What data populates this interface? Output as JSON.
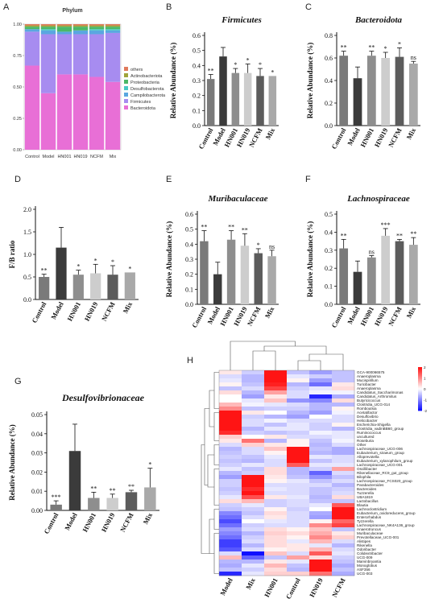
{
  "panel_letters": [
    "A",
    "B",
    "C",
    "D",
    "E",
    "F",
    "G",
    "H"
  ],
  "chart_data": [
    {
      "id": "A",
      "type": "bar",
      "stacked": true,
      "title": "Phylum",
      "categories": [
        "Control",
        "Model",
        "HN001",
        "HN019",
        "NCFM",
        "Mix"
      ],
      "ylim": [
        0,
        1
      ],
      "yticks": [
        "0.00",
        "0.25",
        "0.50",
        "0.75",
        "1.00"
      ],
      "legend_position": "right",
      "series": [
        {
          "name": "Bacteroidota",
          "color": "#e86fd6",
          "values": [
            0.67,
            0.45,
            0.6,
            0.6,
            0.58,
            0.54
          ]
        },
        {
          "name": "Firmicutes",
          "color": "#a78cf0",
          "values": [
            0.27,
            0.47,
            0.32,
            0.32,
            0.34,
            0.39
          ]
        },
        {
          "name": "Campilobacterota",
          "color": "#5aa7e0",
          "values": [
            0.02,
            0.03,
            0.02,
            0.03,
            0.03,
            0.02
          ]
        },
        {
          "name": "Desulfobacterota",
          "color": "#47c9c4",
          "values": [
            0.0,
            0.01,
            0.0,
            0.0,
            0.01,
            0.01
          ]
        },
        {
          "name": "Proteobacteria",
          "color": "#4bb868",
          "values": [
            0.02,
            0.02,
            0.04,
            0.03,
            0.02,
            0.02
          ]
        },
        {
          "name": "Actinobacteriota",
          "color": "#a0a43a",
          "values": [
            0.01,
            0.01,
            0.01,
            0.01,
            0.01,
            0.01
          ]
        },
        {
          "name": "others",
          "color": "#e07a5c",
          "values": [
            0.01,
            0.01,
            0.01,
            0.01,
            0.01,
            0.01
          ]
        }
      ],
      "legend_order": [
        "others",
        "Actinobacteriota",
        "Proteobacteria",
        "Desulfobacterota",
        "Campilobacterota",
        "Firmicutes",
        "Bacteroidota"
      ]
    },
    {
      "id": "B",
      "type": "bar",
      "title": "Firmicutes",
      "ylabel": "Relative Abundance (%)",
      "categories": [
        "Control",
        "Model",
        "HN001",
        "HN019",
        "NCFM",
        "Mix"
      ],
      "values": [
        0.31,
        0.46,
        0.35,
        0.35,
        0.33,
        0.33
      ],
      "errors": [
        0.03,
        0.06,
        0.03,
        0.06,
        0.05,
        0.0
      ],
      "sig": [
        "**",
        "",
        "*",
        "*",
        "*",
        "*"
      ],
      "ylim": [
        0,
        0.6
      ],
      "yticks": [
        "0.0",
        "0.1",
        "0.2",
        "0.3",
        "0.4",
        "0.5",
        "0.6"
      ]
    },
    {
      "id": "C",
      "type": "bar",
      "title": "Bacteroidota",
      "ylabel": "Relative Abundance (%)",
      "categories": [
        "Control",
        "Model",
        "HN001",
        "HN019",
        "NCFM",
        "Mix"
      ],
      "values": [
        0.62,
        0.42,
        0.62,
        0.6,
        0.61,
        0.55
      ],
      "errors": [
        0.04,
        0.1,
        0.04,
        0.05,
        0.08,
        0.02
      ],
      "sig": [
        "**",
        "",
        "**",
        "*",
        "*",
        "ns"
      ],
      "ylim": [
        0,
        0.8
      ],
      "yticks": [
        "0.0",
        "0.2",
        "0.4",
        "0.6",
        "0.8"
      ]
    },
    {
      "id": "D",
      "type": "bar",
      "title": "",
      "ylabel": "F/B ratio",
      "categories": [
        "Control",
        "Model",
        "HN001",
        "HN019",
        "NCFM",
        "Mix"
      ],
      "values": [
        0.5,
        1.15,
        0.55,
        0.58,
        0.55,
        0.6
      ],
      "errors": [
        0.06,
        0.45,
        0.1,
        0.2,
        0.2,
        0.0
      ],
      "sig": [
        "**",
        "",
        "*",
        "*",
        "*",
        "*"
      ],
      "ylim": [
        0,
        2.0
      ],
      "yticks": [
        "0.0",
        "0.5",
        "1.0",
        "1.5",
        "2.0"
      ]
    },
    {
      "id": "E",
      "type": "bar",
      "title": "Muribaculaceae",
      "ylabel": "Relative Abundance (%)",
      "categories": [
        "Control",
        "Model",
        "HN001",
        "HN019",
        "NCFM",
        "Mix"
      ],
      "values": [
        0.42,
        0.2,
        0.43,
        0.39,
        0.34,
        0.32
      ],
      "errors": [
        0.07,
        0.08,
        0.06,
        0.08,
        0.03,
        0.04
      ],
      "sig": [
        "**",
        "",
        "**",
        "**",
        "*",
        "ns"
      ],
      "ylim": [
        0,
        0.6
      ],
      "yticks": [
        "0.0",
        "0.1",
        "0.2",
        "0.3",
        "0.4",
        "0.5",
        "0.6"
      ]
    },
    {
      "id": "F",
      "type": "bar",
      "title": "Lachnospiraceae",
      "ylabel": "Relative Abundance (%)",
      "categories": [
        "Control",
        "Model",
        "HN001",
        "HN019",
        "NCFM",
        "Mix"
      ],
      "values": [
        0.31,
        0.18,
        0.26,
        0.38,
        0.35,
        0.33
      ],
      "errors": [
        0.05,
        0.06,
        0.01,
        0.04,
        0.01,
        0.04
      ],
      "sig": [
        "**",
        "",
        "ns",
        "***",
        "**",
        "**"
      ],
      "ylim": [
        0,
        0.5
      ],
      "yticks": [
        "0.0",
        "0.1",
        "0.2",
        "0.3",
        "0.4",
        "0.5"
      ]
    },
    {
      "id": "G",
      "type": "bar",
      "title": "Desulfovibrionaceae",
      "ylabel": "Relative Abundance (%)",
      "categories": [
        "Control",
        "Model",
        "HN001",
        "HN019",
        "NCFM",
        "Mix"
      ],
      "values": [
        0.003,
        0.031,
        0.0065,
        0.0065,
        0.0095,
        0.012
      ],
      "errors": [
        0.002,
        0.014,
        0.003,
        0.002,
        0.001,
        0.01
      ],
      "sig": [
        "***",
        "",
        "**",
        "**",
        "**",
        "*"
      ],
      "ylim": [
        0,
        0.05
      ],
      "yticks": [
        "0.00",
        "0.01",
        "0.02",
        "0.03",
        "0.04",
        "0.05"
      ]
    },
    {
      "id": "H",
      "type": "heatmap",
      "columns": [
        "Model",
        "Mix",
        "HN001",
        "Control",
        "HN019",
        "NCFM"
      ],
      "rows": [
        "GCA-900066575",
        "Anaeroplasma",
        "Mucispirillum",
        "Turicibacter",
        "Anaeroplasma",
        "Candidatus_Saccharimonas",
        "Candidatus_Arthromitus",
        "Butyricicoccus",
        "Clostridia_UCG-014",
        "Romboutsia",
        "Acetatifactor",
        "Desulfovibrio",
        "Helicobacter",
        "Escherichia-Shigella",
        "Clostridia_vadinBB60_group",
        "Ruminococcus",
        "uncultured",
        "Roseburia",
        "Other",
        "Lachnospiraceae_UCG-006",
        "Eubacterium_siraeum_group",
        "Alloprevotella",
        "Eubacterium_xylanophilum_group",
        "Lachnospiraceae_UCG-001",
        "Oscillibacter",
        "Rikenellaceae_RC9_gut_group",
        "Bilophila",
        "Lachnospiraceae_FCS020_group",
        "Parabacteroides",
        "Bacteroides",
        "Tuzzerella",
        "UBA1819",
        "Lactobacillus",
        "Blautia",
        "Lachnoclostridium",
        "Eubacterium_oxidoreducens_group",
        "Enterorhabdus",
        "Tyzzerella",
        "Lachnospiraceae_NK4A136_group",
        "Anaerotruncus",
        "Muribaculaceae",
        "Prevotellaceae_UCG-001",
        "Alistipes",
        "Rikenella",
        "Odoribacter",
        "Colidextribacter",
        "UCG-009",
        "Marvinbryantia",
        "Monoglobus",
        "ASF356",
        "UCG-003"
      ],
      "values": [
        [
          0.2,
          -0.4,
          2.0,
          -0.5,
          -0.8,
          -0.5
        ],
        [
          -0.3,
          -0.6,
          2.0,
          -0.2,
          -0.4,
          -0.5
        ],
        [
          -0.2,
          -0.6,
          2.0,
          0.1,
          -0.8,
          -0.5
        ],
        [
          0.1,
          -0.5,
          1.9,
          -0.6,
          -1.2,
          0.2
        ],
        [
          -0.5,
          -0.3,
          1.6,
          -0.4,
          -0.2,
          0.3
        ],
        [
          0.3,
          -0.6,
          0.8,
          -0.3,
          -0.1,
          -0.1
        ],
        [
          0.0,
          -0.8,
          0.2,
          -0.3,
          -1.8,
          -0.7
        ],
        [
          0.0,
          -0.2,
          0.5,
          -0.9,
          -1.0,
          0.3
        ],
        [
          0.6,
          -0.1,
          -0.2,
          -0.3,
          -0.6,
          -0.6
        ],
        [
          1.0,
          -0.5,
          -0.4,
          -0.4,
          -0.6,
          0.1
        ],
        [
          2.0,
          0.2,
          0.0,
          -0.6,
          -0.8,
          -0.1
        ],
        [
          2.0,
          -0.4,
          -0.6,
          -0.8,
          0.0,
          -0.3
        ],
        [
          2.0,
          -0.3,
          -0.1,
          -0.3,
          -0.3,
          -0.3
        ],
        [
          2.0,
          -0.3,
          -0.5,
          -0.2,
          -0.4,
          0.1
        ],
        [
          2.0,
          -0.6,
          -0.2,
          -0.2,
          -0.4,
          -0.6
        ],
        [
          1.8,
          -0.4,
          -0.5,
          -0.4,
          -0.1,
          -0.2
        ],
        [
          0.4,
          0.0,
          0.2,
          -0.3,
          -0.3,
          -0.2
        ],
        [
          0.2,
          1.2,
          -0.6,
          0.1,
          -0.5,
          -0.1
        ],
        [
          -0.3,
          0.4,
          0.2,
          0.1,
          -0.6,
          -0.3
        ],
        [
          -0.6,
          -0.3,
          0.5,
          2.0,
          -0.5,
          -0.7
        ],
        [
          -0.5,
          -0.3,
          0.1,
          2.0,
          -0.6,
          -0.7
        ],
        [
          -0.4,
          -0.5,
          -0.2,
          2.0,
          -0.2,
          -0.3
        ],
        [
          -0.5,
          -0.6,
          -0.3,
          2.0,
          -0.5,
          -0.3
        ],
        [
          -0.4,
          -0.2,
          -0.3,
          1.4,
          -0.2,
          -0.2
        ],
        [
          -0.2,
          -0.5,
          0.3,
          -0.6,
          -0.4,
          0.8
        ],
        [
          -0.6,
          -0.4,
          0.3,
          -0.6,
          -1.3,
          -0.3
        ],
        [
          -0.8,
          2.0,
          0.2,
          -0.5,
          -0.9,
          -0.5
        ],
        [
          -0.4,
          2.0,
          0.1,
          -0.2,
          -0.5,
          -0.3
        ],
        [
          -0.4,
          2.0,
          -0.3,
          -0.3,
          -0.3,
          -0.6
        ],
        [
          -0.5,
          1.8,
          -0.2,
          -0.3,
          -0.5,
          -0.4
        ],
        [
          -0.4,
          2.0,
          -0.3,
          -0.3,
          -0.5,
          -0.3
        ],
        [
          -0.2,
          1.5,
          0.2,
          -0.2,
          -0.6,
          0.3
        ],
        [
          0.3,
          0.6,
          -0.4,
          -0.3,
          -0.5,
          -0.5
        ],
        [
          -0.4,
          -0.2,
          -0.4,
          -0.3,
          -0.2,
          1.4
        ],
        [
          -0.5,
          -0.4,
          0.1,
          -0.4,
          0.0,
          2.0
        ],
        [
          -1.0,
          -0.5,
          0.3,
          -0.3,
          -0.7,
          2.0
        ],
        [
          -1.2,
          -0.3,
          0.2,
          -0.3,
          -0.8,
          2.0
        ],
        [
          -1.5,
          0.0,
          -0.2,
          -0.3,
          0.1,
          1.3
        ],
        [
          -1.2,
          -0.4,
          -0.3,
          -0.3,
          1.0,
          1.6
        ],
        [
          -0.8,
          -0.3,
          0.3,
          0.1,
          0.5,
          -0.5
        ],
        [
          -1.0,
          -0.6,
          0.4,
          0.3,
          0.7,
          0.2
        ],
        [
          -1.2,
          -0.4,
          0.3,
          0.1,
          1.0,
          0.4
        ],
        [
          -1.6,
          -0.3,
          0.3,
          -0.2,
          0.6,
          -0.3
        ],
        [
          -1.6,
          -0.6,
          0.3,
          0.2,
          -0.2,
          -0.6
        ],
        [
          -1.4,
          -0.3,
          0.1,
          0.2,
          0.6,
          -0.3
        ],
        [
          -0.3,
          -2.0,
          0.5,
          -0.3,
          1.4,
          -0.2
        ],
        [
          0.6,
          -1.3,
          -0.5,
          0.8,
          0.3,
          -0.4
        ],
        [
          -0.6,
          -0.6,
          0.2,
          -0.2,
          2.0,
          -0.5
        ],
        [
          -0.7,
          -0.2,
          0.6,
          -0.5,
          2.0,
          -0.7
        ],
        [
          -0.5,
          -0.4,
          0.3,
          -0.6,
          2.0,
          -0.5
        ],
        [
          -1.8,
          -0.2,
          0.4,
          0.4,
          1.2,
          -0.7
        ]
      ],
      "scale": {
        "min": -2,
        "max": 2,
        "ticks": [
          "2",
          "1",
          "0",
          "-1",
          "-2"
        ]
      }
    }
  ]
}
